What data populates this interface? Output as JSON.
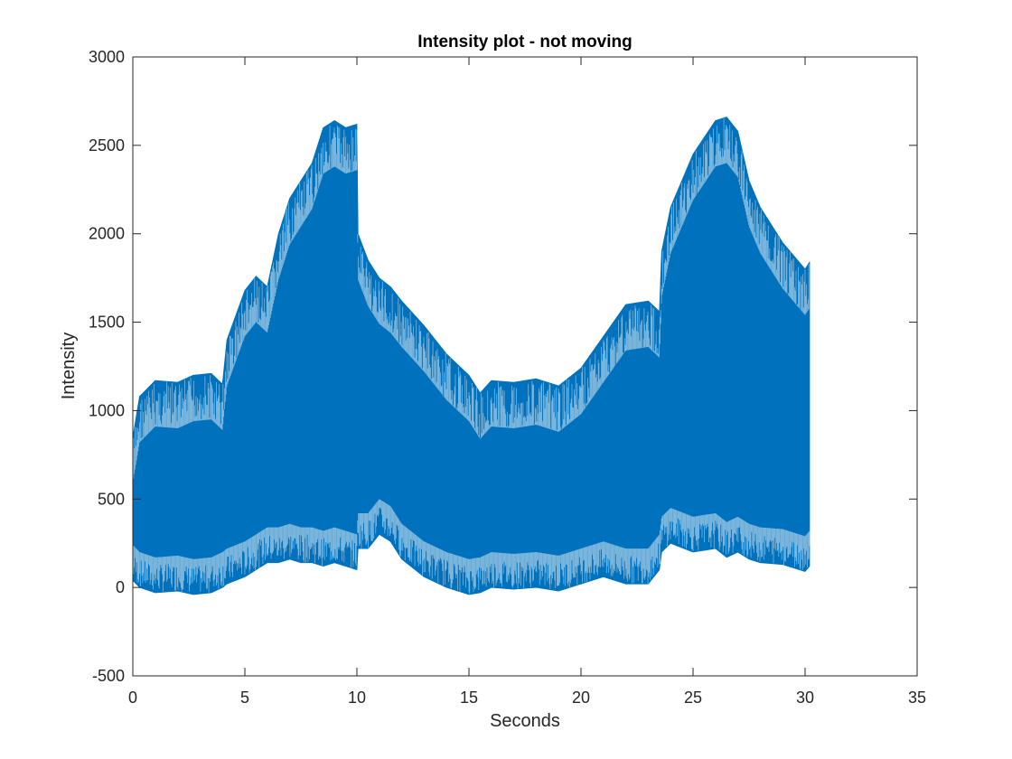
{
  "figure": {
    "background": "#ffffff"
  },
  "chart_data": {
    "type": "line",
    "title": "Intensity plot - not moving",
    "xlabel": "Seconds",
    "ylabel": "Intensity",
    "xlim": [
      0,
      35
    ],
    "ylim": [
      -500,
      3000
    ],
    "xticks": [
      0,
      5,
      10,
      15,
      20,
      25,
      30,
      35
    ],
    "yticks": [
      -500,
      0,
      500,
      1000,
      1500,
      2000,
      2500,
      3000
    ],
    "xtick_labels": [
      "0",
      "5",
      "10",
      "15",
      "20",
      "25",
      "30",
      "35"
    ],
    "ytick_labels": [
      "-500",
      "0",
      "500",
      "1000",
      "1500",
      "2000",
      "2500",
      "3000"
    ],
    "grid": false,
    "legend": "none",
    "series": [
      {
        "color": "#0072BD",
        "rendering": "dense oscillating signal; envelope of its per-interval maximum and minimum",
        "x": [
          0,
          0.3,
          1,
          2,
          2.7,
          3.5,
          4,
          4.2,
          5,
          5.5,
          6,
          6.5,
          7,
          7.5,
          8,
          8.5,
          9,
          9.5,
          10,
          10.05,
          10.5,
          11,
          11.5,
          12,
          13,
          14,
          15,
          15.5,
          16,
          17,
          18,
          19,
          20,
          21,
          22,
          23,
          23.5,
          23.6,
          24,
          25,
          26,
          26.5,
          27,
          27.5,
          28,
          29,
          30,
          30.2
        ],
        "upper": [
          850,
          1080,
          1170,
          1160,
          1200,
          1210,
          1150,
          1400,
          1680,
          1760,
          1700,
          2000,
          2200,
          2300,
          2400,
          2600,
          2640,
          2600,
          2620,
          2000,
          1850,
          1750,
          1700,
          1620,
          1480,
          1320,
          1200,
          1100,
          1170,
          1160,
          1180,
          1140,
          1240,
          1420,
          1600,
          1620,
          1560,
          1900,
          2150,
          2450,
          2640,
          2660,
          2580,
          2300,
          2150,
          1950,
          1800,
          1840
        ],
        "lower": [
          40,
          0,
          -30,
          -20,
          -40,
          -30,
          0,
          20,
          60,
          100,
          140,
          140,
          160,
          140,
          140,
          120,
          140,
          120,
          100,
          220,
          220,
          300,
          260,
          160,
          60,
          0,
          -40,
          -30,
          0,
          -10,
          0,
          -20,
          20,
          60,
          20,
          20,
          100,
          200,
          250,
          200,
          220,
          170,
          200,
          160,
          140,
          130,
          90,
          120
        ]
      }
    ]
  }
}
